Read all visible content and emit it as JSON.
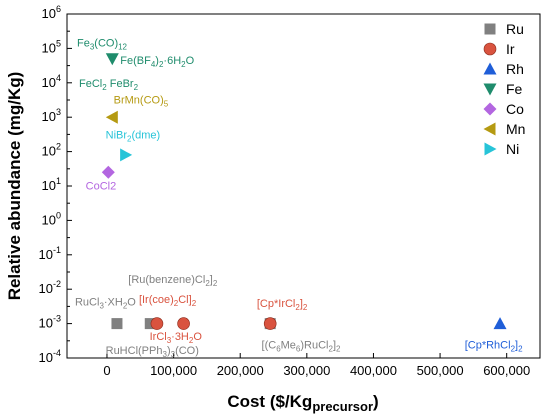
{
  "chart_data": {
    "type": "scatter",
    "title": "",
    "xlabel": "Cost ($/Kg",
    "xlabel_sub": "precursor",
    "xlabel_close": ")",
    "ylabel": "Relative abundance (mg/Kg)",
    "xlim": [
      -60000,
      650000
    ],
    "ylim_log10": [
      -4,
      6
    ],
    "y_scale": "log",
    "x_ticks": [
      0,
      100000,
      200000,
      300000,
      400000,
      500000,
      600000
    ],
    "x_tick_labels": [
      "0",
      "100,000",
      "200,000",
      "300,000",
      "400,000",
      "500,000",
      "600,000"
    ],
    "y_ticks_exp": [
      -4,
      -3,
      -2,
      -1,
      0,
      1,
      2,
      3,
      4,
      5,
      6
    ],
    "y_tick_base": "10",
    "grid": false,
    "legend_position": "top-right",
    "series": [
      {
        "name": "Ru",
        "marker": "square",
        "color": "#808080",
        "points": [
          {
            "x": 15000,
            "y": 0.001
          },
          {
            "x": 65000,
            "y": 0.001
          },
          {
            "x": 245000,
            "y": 0.001
          }
        ]
      },
      {
        "name": "Ir",
        "marker": "circle",
        "color": "#d9533f",
        "points": [
          {
            "x": 75000,
            "y": 0.001
          },
          {
            "x": 115000,
            "y": 0.001
          },
          {
            "x": 245000,
            "y": 0.001
          }
        ]
      },
      {
        "name": "Rh",
        "marker": "triangle-up",
        "color": "#1f5ed8",
        "points": [
          {
            "x": 590000,
            "y": 0.001
          }
        ]
      },
      {
        "name": "Fe",
        "marker": "triangle-down",
        "color": "#1f8c6c",
        "points": [
          {
            "x": 8000,
            "y": 50000
          }
        ]
      },
      {
        "name": "Co",
        "marker": "diamond",
        "color": "#b366e0",
        "points": [
          {
            "x": 2000,
            "y": 25
          }
        ]
      },
      {
        "name": "Mn",
        "marker": "triangle-left",
        "color": "#b59a12",
        "points": [
          {
            "x": 8000,
            "y": 1000
          }
        ]
      },
      {
        "name": "Ni",
        "marker": "triangle-right",
        "color": "#27c4d8",
        "points": [
          {
            "x": 28000,
            "y": 80
          }
        ]
      }
    ],
    "annotations": [
      {
        "parts": [
          [
            "Fe",
            ""
          ],
          [
            "3",
            "sub"
          ],
          [
            "(CO)",
            ""
          ],
          [
            "12",
            "sub"
          ]
        ],
        "color": "#1f8c6c",
        "x": -45000,
        "y_log": 5.05,
        "anchor": "start"
      },
      {
        "parts": [
          [
            "Fe(BF",
            ""
          ],
          [
            "4",
            "sub"
          ],
          [
            ")",
            ""
          ],
          [
            "2",
            "sub"
          ],
          [
            "·6H",
            ""
          ],
          [
            "2",
            "sub"
          ],
          [
            "O",
            ""
          ]
        ],
        "color": "#1f8c6c",
        "x": 20000,
        "y_log": 4.55,
        "anchor": "start"
      },
      {
        "parts": [
          [
            "FeCl",
            ""
          ],
          [
            "2",
            "sub"
          ],
          [
            " FeBr",
            ""
          ],
          [
            "2",
            "sub"
          ]
        ],
        "color": "#1f8c6c",
        "x": -42000,
        "y_log": 3.88,
        "anchor": "start"
      },
      {
        "parts": [
          [
            "BrMn(CO)",
            ""
          ],
          [
            "5",
            "sub"
          ]
        ],
        "color": "#b59a12",
        "x": 10000,
        "y_log": 3.4,
        "anchor": "start"
      },
      {
        "parts": [
          [
            "NiBr",
            ""
          ],
          [
            "2",
            "sub"
          ],
          [
            "(dme)",
            ""
          ]
        ],
        "color": "#27c4d8",
        "x": -2000,
        "y_log": 2.38,
        "anchor": "start"
      },
      {
        "parts": [
          [
            "CoCl2",
            ""
          ]
        ],
        "color": "#b366e0",
        "x": -32000,
        "y_log": 0.9,
        "anchor": "start"
      },
      {
        "parts": [
          [
            "RuCl",
            ""
          ],
          [
            "3",
            "sub"
          ],
          [
            "·XH",
            ""
          ],
          [
            "2",
            "sub"
          ],
          [
            "O",
            ""
          ]
        ],
        "color": "#808080",
        "x": -48000,
        "y_log": -2.47,
        "anchor": "start"
      },
      {
        "parts": [
          [
            "[Ru(benzene)Cl",
            ""
          ],
          [
            "2",
            "sub"
          ],
          [
            "]",
            ""
          ],
          [
            "2",
            "sub"
          ]
        ],
        "color": "#808080",
        "x": 32000,
        "y_log": -1.82,
        "anchor": "start"
      },
      {
        "parts": [
          [
            "[Ir(coe)",
            ""
          ],
          [
            "2",
            "sub"
          ],
          [
            "Cl]",
            ""
          ],
          [
            "2",
            "sub"
          ]
        ],
        "color": "#d9533f",
        "x": 48000,
        "y_log": -2.4,
        "anchor": "start"
      },
      {
        "parts": [
          [
            "[Cp*IrCl",
            ""
          ],
          [
            "2",
            "sub"
          ],
          [
            "]",
            ""
          ],
          [
            "2",
            "sub"
          ]
        ],
        "color": "#d9533f",
        "x": 225000,
        "y_log": -2.52,
        "anchor": "start"
      },
      {
        "parts": [
          [
            "IrCl",
            ""
          ],
          [
            "3",
            "sub"
          ],
          [
            "·3H",
            ""
          ],
          [
            "2",
            "sub"
          ],
          [
            "O",
            ""
          ]
        ],
        "color": "#d9533f",
        "x": 64000,
        "y_log": -3.47,
        "anchor": "start"
      },
      {
        "parts": [
          [
            "RuHCl(PPh",
            ""
          ],
          [
            "3",
            "sub"
          ],
          [
            ")",
            ""
          ],
          [
            "3",
            "sub"
          ],
          [
            "(CO)",
            ""
          ]
        ],
        "color": "#808080",
        "x": -2000,
        "y_log": -3.88,
        "anchor": "start"
      },
      {
        "parts": [
          [
            "[(C",
            ""
          ],
          [
            "6",
            "sub"
          ],
          [
            "Me",
            ""
          ],
          [
            "6",
            "sub"
          ],
          [
            ")RuCl",
            ""
          ],
          [
            "2",
            "sub"
          ],
          [
            "]",
            ""
          ],
          [
            "2",
            "sub"
          ]
        ],
        "color": "#808080",
        "x": 232000,
        "y_log": -3.72,
        "anchor": "start"
      },
      {
        "parts": [
          [
            "[Cp*RhCl",
            ""
          ],
          [
            "2",
            "sub"
          ],
          [
            "]",
            ""
          ],
          [
            "2",
            "sub"
          ]
        ],
        "color": "#1f5ed8",
        "x": 537000,
        "y_log": -3.72,
        "anchor": "start"
      }
    ]
  }
}
